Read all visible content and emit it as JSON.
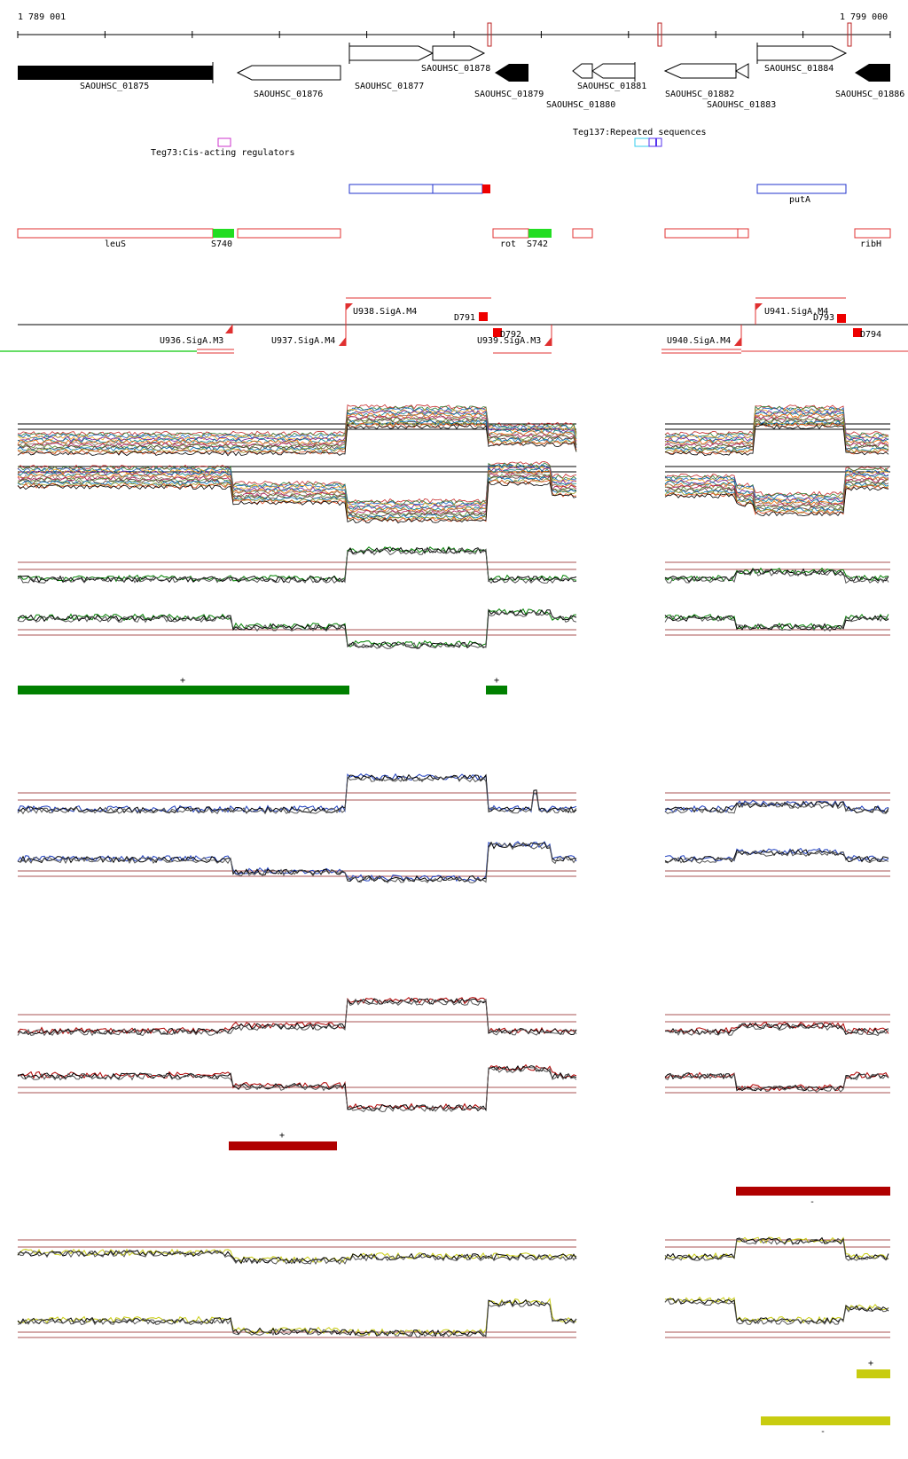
{
  "ruler": {
    "start_label": "1 789 001",
    "end_label": "1 799 000"
  },
  "genes": [
    {
      "id": "SAOUHSC_01875",
      "strand": "+",
      "filled": true
    },
    {
      "id": "SAOUHSC_01876",
      "strand": "-",
      "filled": false
    },
    {
      "id": "SAOUHSC_01877",
      "strand": "+",
      "filled": false
    },
    {
      "id": "SAOUHSC_01878",
      "strand": "+",
      "filled": false
    },
    {
      "id": "SAOUHSC_01879",
      "strand": "-",
      "filled": true
    },
    {
      "id": "SAOUHSC_01880",
      "strand": "-",
      "filled": false
    },
    {
      "id": "SAOUHSC_01881",
      "strand": "-",
      "filled": false
    },
    {
      "id": "SAOUHSC_01882",
      "strand": "-",
      "filled": false
    },
    {
      "id": "SAOUHSC_01883",
      "strand": "-",
      "filled": false
    },
    {
      "id": "SAOUHSC_01884",
      "strand": "+",
      "filled": false
    },
    {
      "id": "SAOUHSC_01886",
      "strand": "-",
      "filled": true
    }
  ],
  "regulatory": {
    "teg73": "Teg73:Cis-acting regulators",
    "repeated": "Teg137:Repeated sequences"
  },
  "operons": {
    "puta_label": "putA"
  },
  "red_genes": [
    "leuS",
    "S740",
    "rot",
    "S742",
    "ribH"
  ],
  "tss_labels": [
    "U936.SigA.M3",
    "U937.SigA.M4",
    "U938.SigA.M4",
    "D791",
    "D792",
    "U939.SigA.M3",
    "U940.SigA.M4",
    "U941.SigA.M4",
    "D793",
    "D794"
  ],
  "strand_marks": {
    "plus": "+",
    "minus": "-"
  },
  "colors": {
    "green": "#008000",
    "blue": "#1f3fbf",
    "darkred": "#b00000",
    "yellow": "#c8cc10",
    "threshold": "#8b1a1a",
    "gene_red": "#e03030",
    "teg73_box": "#cc33cc"
  }
}
